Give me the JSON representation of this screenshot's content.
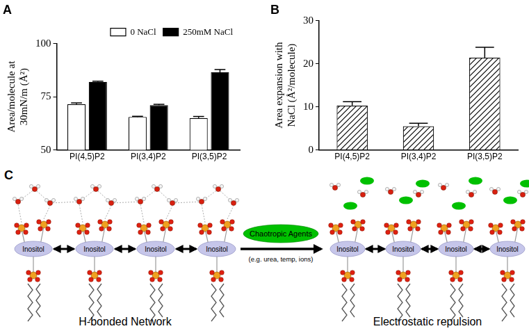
{
  "chart_data": [
    {
      "type": "bar",
      "title": "A",
      "categories": [
        "PI(4,5)P2",
        "PI(3,4)P2",
        "PI(3,5)P2"
      ],
      "series": [
        {
          "name": "0 NaCl",
          "color": "#ffffff",
          "values": [
            71.5,
            65.5,
            65
          ],
          "errors": [
            0.6,
            0.3,
            0.7
          ]
        },
        {
          "name": "250mM NaCl",
          "color": "#000000",
          "values": [
            82,
            71,
            86.5
          ],
          "errors": [
            0.3,
            0.4,
            1.3
          ]
        }
      ],
      "ylabel": [
        "Area/molecule at",
        "30mN/m (Å²)"
      ],
      "ylim": [
        50,
        100
      ],
      "yticks": [
        50,
        75,
        100
      ],
      "grid": false,
      "legend": "top"
    },
    {
      "type": "bar",
      "title": "B",
      "categories": [
        "PI(4,5)P2",
        "PI(3,4)P2",
        "PI(3,5)P2"
      ],
      "values": [
        10.3,
        5.5,
        21.4
      ],
      "errors": [
        0.9,
        0.7,
        2.4
      ],
      "color": "#000000",
      "ylabel": [
        "Area expansion with",
        "NaCl (Å²/molecule)"
      ],
      "ylim": [
        0,
        30
      ],
      "yticks": [
        0,
        10,
        20,
        30
      ],
      "grid": false
    }
  ],
  "diagram": {
    "panel": "C",
    "left_label": "H-bonded Network",
    "right_label": "Electrostatic repulsion",
    "agent": "Chaotropic Agents",
    "agent_examples": "(e.g. urea, temp, ions)",
    "left_molecules": [
      "Inositol",
      "Inositol",
      "Inositol",
      "Inositol"
    ],
    "right_molecules": [
      "Inositol",
      "Inositol",
      "Inositol",
      "Inositol"
    ]
  }
}
